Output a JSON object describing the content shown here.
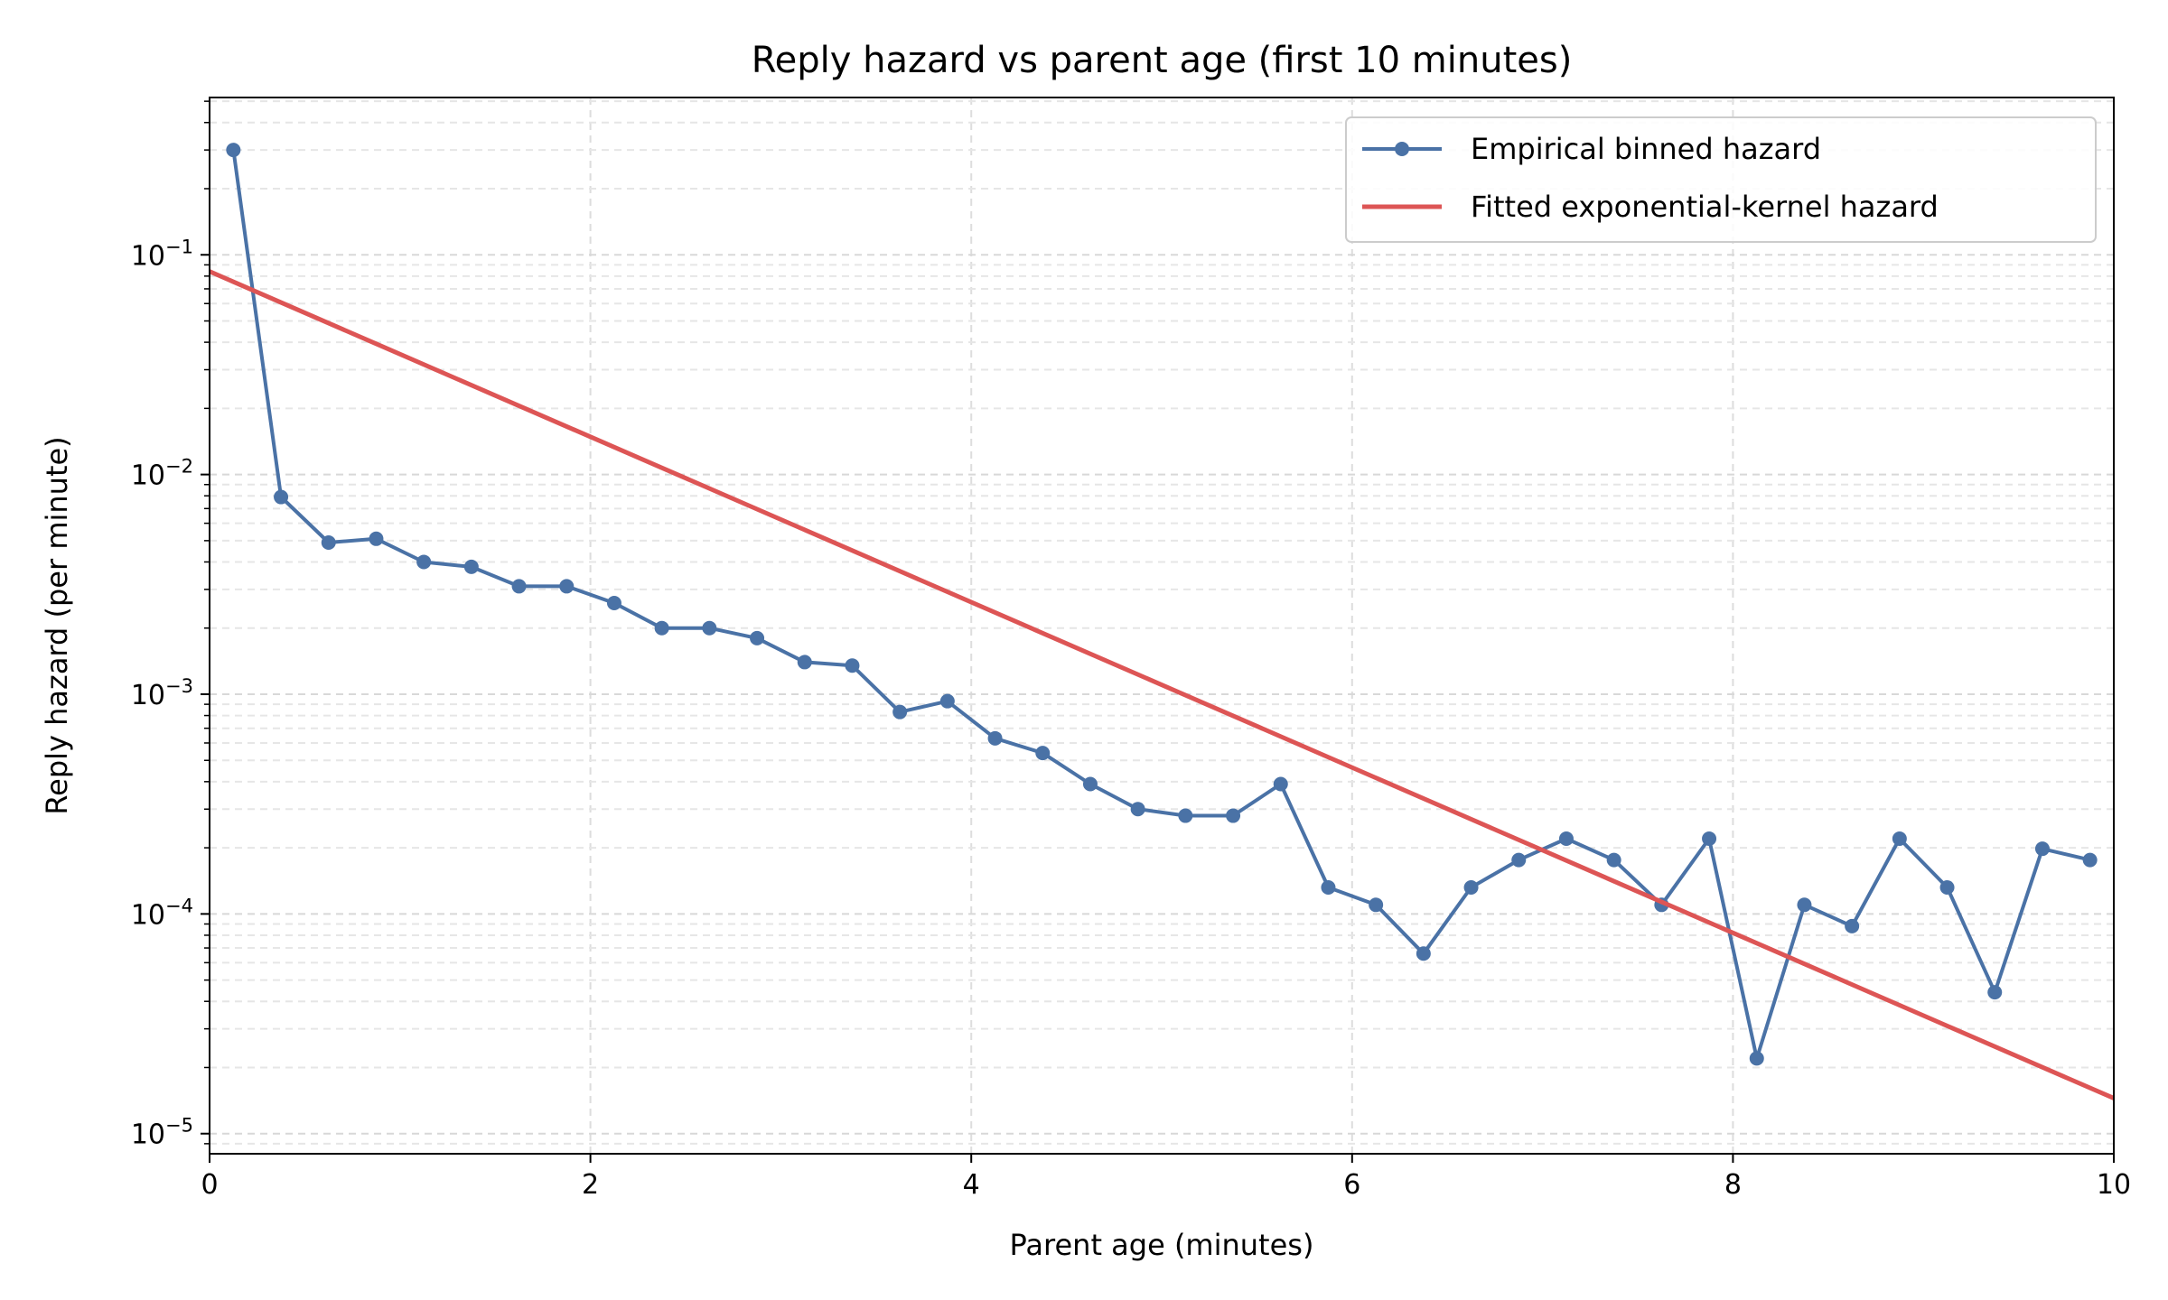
{
  "chart_data": {
    "type": "line",
    "title": "Reply hazard vs parent age (first 10 minutes)",
    "xlabel": "Parent age (minutes)",
    "ylabel": "Reply hazard (per minute)",
    "xlim": [
      0,
      10
    ],
    "ylim": [
      8.1e-06,
      0.52
    ],
    "yscale": "log",
    "x_ticks": [
      0,
      2,
      4,
      6,
      8,
      10
    ],
    "x_tick_labels": [
      "0",
      "2",
      "4",
      "6",
      "8",
      "10"
    ],
    "y_ticks": [
      1e-05,
      0.0001,
      0.001,
      0.01,
      0.1
    ],
    "y_tick_labels": [
      {
        "base": "10",
        "exp": "−5"
      },
      {
        "base": "10",
        "exp": "−4"
      },
      {
        "base": "10",
        "exp": "−3"
      },
      {
        "base": "10",
        "exp": "−2"
      },
      {
        "base": "10",
        "exp": "−1"
      }
    ],
    "grid": true,
    "legend_position": "top-right",
    "series": [
      {
        "name": "Empirical binned hazard",
        "color": "#4a72a6",
        "style": "line-markers",
        "x": [
          0.125,
          0.375,
          0.625,
          0.875,
          1.125,
          1.375,
          1.625,
          1.875,
          2.125,
          2.375,
          2.625,
          2.875,
          3.125,
          3.375,
          3.625,
          3.875,
          4.125,
          4.375,
          4.625,
          4.875,
          5.125,
          5.375,
          5.625,
          5.875,
          6.125,
          6.375,
          6.625,
          6.875,
          7.125,
          7.375,
          7.625,
          7.875,
          8.125,
          8.375,
          8.625,
          8.875,
          9.125,
          9.375,
          9.625,
          9.875
        ],
        "y": [
          0.3,
          0.0079,
          0.0049,
          0.0051,
          0.004,
          0.0038,
          0.0031,
          0.0031,
          0.0026,
          0.002,
          0.002,
          0.0018,
          0.0014,
          0.00135,
          0.00083,
          0.00093,
          0.00063,
          0.00054,
          0.00039,
          0.0003,
          0.00028,
          0.00028,
          0.00039,
          0.000132,
          0.00011,
          6.6e-05,
          0.000132,
          0.000176,
          0.00022,
          0.000176,
          0.00011,
          0.00022,
          2.2e-05,
          0.00011,
          8.8e-05,
          0.00022,
          0.000132,
          4.4e-05,
          0.000198,
          0.000176
        ]
      },
      {
        "name": "Fitted exponential-kernel hazard",
        "color": "#dd5555",
        "style": "line",
        "x": [
          0,
          10
        ],
        "y": [
          0.084,
          1.45e-05
        ]
      }
    ]
  }
}
